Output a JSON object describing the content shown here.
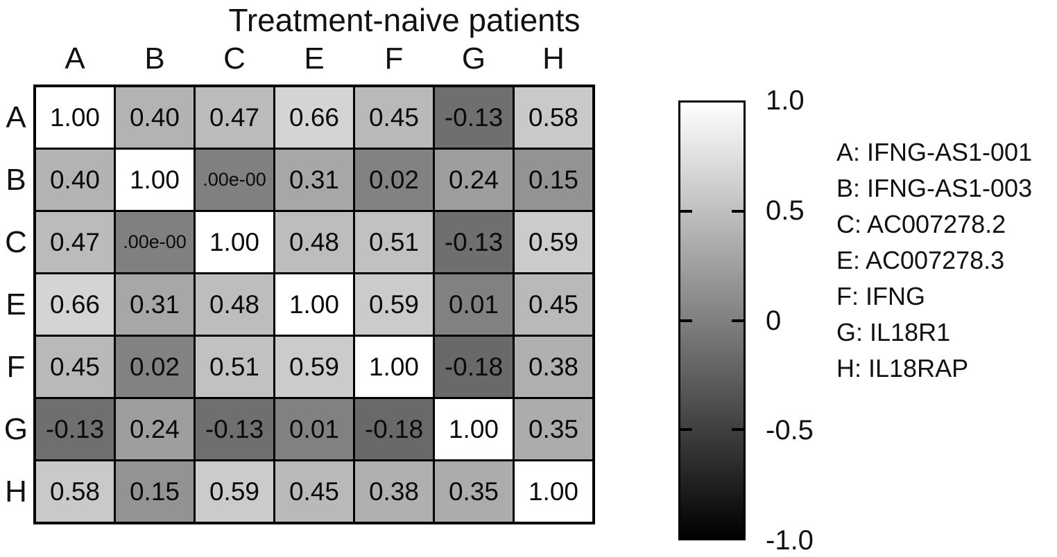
{
  "chart_data": {
    "type": "heatmap",
    "title": "Treatment-naive patients",
    "x_categories": [
      "A",
      "B",
      "C",
      "E",
      "F",
      "G",
      "H"
    ],
    "y_categories": [
      "A",
      "B",
      "C",
      "E",
      "F",
      "G",
      "H"
    ],
    "cell_labels": [
      [
        "1.00",
        "0.40",
        "0.47",
        "0.66",
        "0.45",
        "-0.13",
        "0.58"
      ],
      [
        "0.40",
        "1.00",
        ".00e-00",
        "0.31",
        "0.02",
        "0.24",
        "0.15"
      ],
      [
        "0.47",
        ".00e-00",
        "1.00",
        "0.48",
        "0.51",
        "-0.13",
        "0.59"
      ],
      [
        "0.66",
        "0.31",
        "0.48",
        "1.00",
        "0.59",
        "0.01",
        "0.45"
      ],
      [
        "0.45",
        "0.02",
        "0.51",
        "0.59",
        "1.00",
        "-0.18",
        "0.38"
      ],
      [
        "-0.13",
        "0.24",
        "-0.13",
        "0.01",
        "-0.18",
        "1.00",
        "0.35"
      ],
      [
        "0.58",
        "0.15",
        "0.59",
        "0.45",
        "0.38",
        "0.35",
        "1.00"
      ]
    ],
    "values": [
      [
        1.0,
        0.4,
        0.47,
        0.66,
        0.45,
        -0.13,
        0.58
      ],
      [
        0.4,
        1.0,
        0.0,
        0.31,
        0.02,
        0.24,
        0.15
      ],
      [
        0.47,
        0.0,
        1.0,
        0.48,
        0.51,
        -0.13,
        0.59
      ],
      [
        0.66,
        0.31,
        0.48,
        1.0,
        0.59,
        0.01,
        0.45
      ],
      [
        0.45,
        0.02,
        0.51,
        0.59,
        1.0,
        -0.18,
        0.38
      ],
      [
        -0.13,
        0.24,
        -0.13,
        0.01,
        -0.18,
        1.0,
        0.35
      ],
      [
        0.58,
        0.15,
        0.59,
        0.45,
        0.38,
        0.35,
        1.0
      ]
    ],
    "colormap": {
      "min": -1,
      "max": 1,
      "min_color": "#000000",
      "max_color": "#ffffff"
    },
    "colorbar_ticks": [
      {
        "label": "1.0",
        "value": 1.0,
        "mark": false
      },
      {
        "label": "0.5",
        "value": 0.5,
        "mark": true
      },
      {
        "label": "0",
        "value": 0,
        "mark": true
      },
      {
        "label": "-0.5",
        "value": -0.5,
        "mark": true
      },
      {
        "label": "-1.0",
        "value": -1.0,
        "mark": false
      }
    ],
    "legend_position": "right",
    "grid": true,
    "legend": [
      {
        "key": "A",
        "name": "IFNG-AS1-001",
        "label": "A: IFNG-AS1-001"
      },
      {
        "key": "B",
        "name": "IFNG-AS1-003",
        "label": "B: IFNG-AS1-003"
      },
      {
        "key": "C",
        "name": "AC007278.2",
        "label": "C: AC007278.2"
      },
      {
        "key": "E",
        "name": "AC007278.3",
        "label": "E: AC007278.3"
      },
      {
        "key": "F",
        "name": "IFNG",
        "label": "F: IFNG"
      },
      {
        "key": "G",
        "name": "IL18R1",
        "label": "G: IL18R1"
      },
      {
        "key": "H",
        "name": "IL18RAP",
        "label": "H: IL18RAP"
      }
    ]
  }
}
